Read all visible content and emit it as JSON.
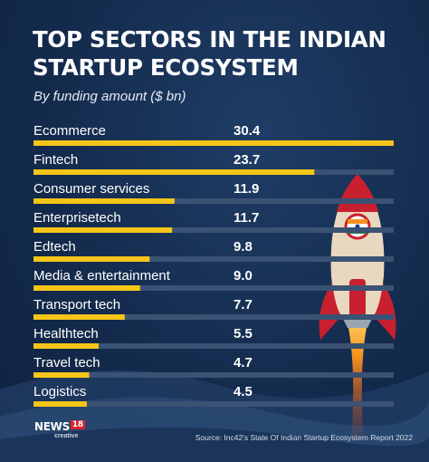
{
  "header": {
    "title": "TOP SECTORS IN THE INDIAN STARTUP ECOSYSTEM",
    "subtitle": "By funding amount ($ bn)"
  },
  "footer": {
    "source": "Source: Inc42's State Of Indian Startup Ecosystem Report 2022",
    "logo_main": "NEWS",
    "logo_number": "18",
    "logo_sub": "creative"
  },
  "colors": {
    "background": "#142b4d",
    "bar": "#f5c518",
    "track": "#3a5273",
    "text": "#ffffff"
  },
  "chart_data": {
    "type": "bar",
    "orientation": "horizontal",
    "title": "TOP SECTORS IN THE INDIAN STARTUP ECOSYSTEM",
    "subtitle": "By funding amount ($ bn)",
    "categories": [
      "Ecommerce",
      "Fintech",
      "Consumer services",
      "Enterprisetech",
      "Edtech",
      "Media & entertainment",
      "Transport tech",
      "Healthtech",
      "Travel tech",
      "Logistics"
    ],
    "values": [
      30.4,
      23.7,
      11.9,
      11.7,
      9.8,
      9.0,
      7.7,
      5.5,
      4.7,
      4.5
    ],
    "value_labels": [
      "30.4",
      "23.7",
      "11.9",
      "11.7",
      "9.8",
      "9.0",
      "7.7",
      "5.5",
      "4.7",
      "4.5"
    ],
    "xlim": [
      0,
      30.4
    ],
    "grid": false,
    "legend": "none"
  }
}
